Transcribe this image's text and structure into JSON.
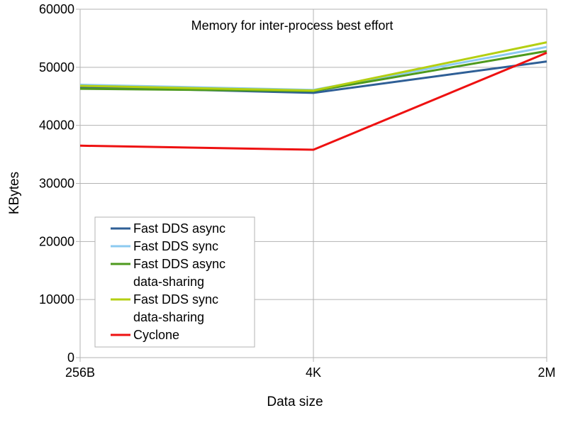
{
  "chart_data": {
    "type": "line",
    "title": "Memory for inter-process best effort",
    "xlabel": "Data size",
    "ylabel": "KBytes",
    "categories": [
      "256B",
      "4K",
      "2M"
    ],
    "ylim": [
      0,
      60000
    ],
    "yticks": [
      "0",
      "10000",
      "20000",
      "30000",
      "40000",
      "50000",
      "60000"
    ],
    "grid": true,
    "legend_position": "bottom-left",
    "series": [
      {
        "name": "Fast DDS async",
        "name_lines": [
          "Fast DDS async"
        ],
        "color": "#2f5f96",
        "values": [
          46600,
          45600,
          51000
        ]
      },
      {
        "name": "Fast DDS sync",
        "name_lines": [
          "Fast DDS sync"
        ],
        "color": "#8ccaf0",
        "values": [
          47000,
          46100,
          53500
        ]
      },
      {
        "name": "Fast DDS async data-sharing",
        "name_lines": [
          "Fast DDS async",
          "data-sharing"
        ],
        "color": "#4e9a1e",
        "values": [
          46300,
          45900,
          52800
        ]
      },
      {
        "name": "Fast DDS sync data-sharing",
        "name_lines": [
          "Fast DDS sync",
          "data-sharing"
        ],
        "color": "#b4cf12",
        "values": [
          46800,
          46000,
          54300
        ]
      },
      {
        "name": "Cyclone",
        "name_lines": [
          "Cyclone"
        ],
        "color": "#ee1111",
        "values": [
          36500,
          35800,
          52500
        ]
      }
    ]
  }
}
